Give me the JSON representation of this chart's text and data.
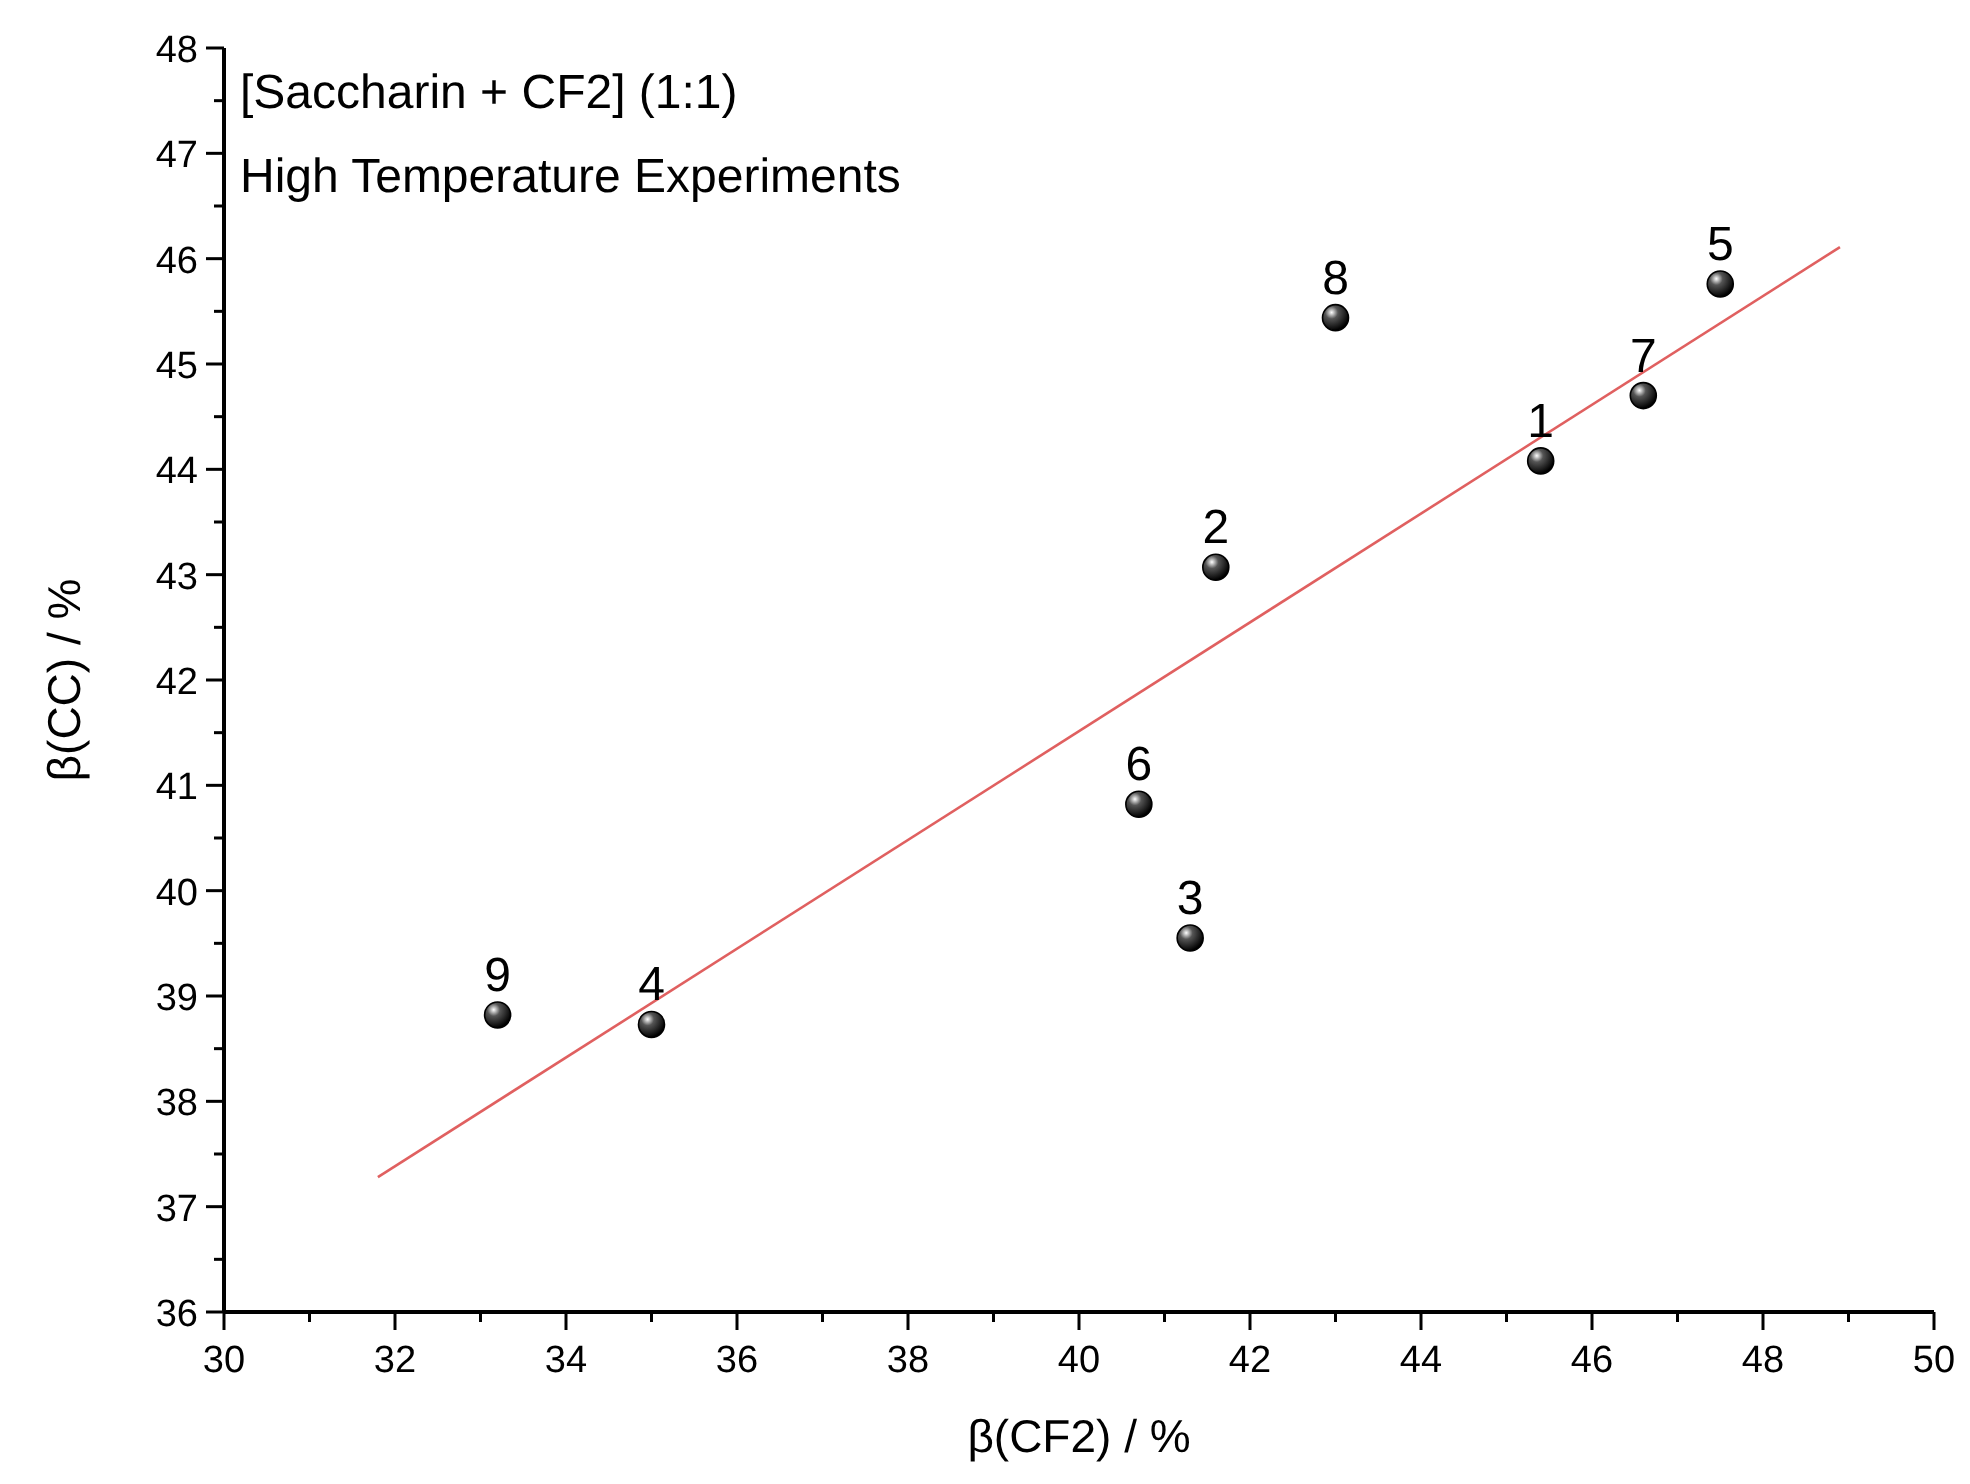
{
  "chart_data": {
    "type": "scatter",
    "title": "[Saccharin + CF2] (1:1)",
    "subtitle": "High Temperature Experiments",
    "xlabel": "β(CF2) / %",
    "ylabel": "β(CC) / %",
    "xlim": [
      30,
      50
    ],
    "ylim": [
      36,
      48
    ],
    "xticks": [
      30,
      {
        "value": 31,
        "label": null
      },
      32,
      {
        "value": 33,
        "label": null
      },
      34,
      {
        "value": 35,
        "label": null
      },
      36,
      {
        "value": 37,
        "label": null
      },
      38,
      {
        "value": 39,
        "label": null
      },
      40,
      {
        "value": 41,
        "label": null
      },
      42,
      {
        "value": 43,
        "label": null
      },
      44,
      {
        "value": 45,
        "label": null
      },
      46,
      {
        "value": 47,
        "label": null
      },
      48,
      {
        "value": 49,
        "label": null
      },
      50
    ],
    "yticks": [
      36,
      {
        "value": 36.5,
        "label": null
      },
      37,
      {
        "value": 37.5,
        "label": null
      },
      38,
      {
        "value": 38.5,
        "label": null
      },
      39,
      {
        "value": 39.5,
        "label": null
      },
      40,
      {
        "value": 40.5,
        "label": null
      },
      41,
      {
        "value": 41.5,
        "label": null
      },
      42,
      {
        "value": 42.5,
        "label": null
      },
      43,
      {
        "value": 43.5,
        "label": null
      },
      44,
      {
        "value": 44.5,
        "label": null
      },
      45,
      {
        "value": 45.5,
        "label": null
      },
      46,
      {
        "value": 46.5,
        "label": null
      },
      47,
      {
        "value": 47.5,
        "label": null
      },
      48
    ],
    "grid": false,
    "annotations": [
      {
        "text": "1",
        "x": 45.4,
        "y": 44.08
      },
      {
        "text": "2",
        "x": 41.6,
        "y": 43.07
      },
      {
        "text": "3",
        "x": 41.3,
        "y": 39.55
      },
      {
        "text": "4",
        "x": 35.0,
        "y": 38.73
      },
      {
        "text": "5",
        "x": 47.5,
        "y": 45.76
      },
      {
        "text": "6",
        "x": 40.7,
        "y": 40.82
      },
      {
        "text": "7",
        "x": 46.6,
        "y": 44.7
      },
      {
        "text": "8",
        "x": 43.0,
        "y": 45.44
      },
      {
        "text": "9",
        "x": 33.2,
        "y": 38.82
      }
    ],
    "series": [
      {
        "color": "#000000",
        "marker": "circle",
        "x": [
          45.4,
          41.6,
          41.3,
          35.0,
          47.5,
          40.7,
          46.6,
          43.0,
          33.2
        ],
        "values": [
          44.08,
          43.07,
          39.55,
          38.73,
          45.76,
          40.82,
          44.7,
          45.44,
          38.82
        ]
      },
      {
        "type": "line",
        "color": "#e06060",
        "marker": "none",
        "line_style": "solid",
        "x": [
          31.8,
          48.9
        ],
        "values": [
          37.28,
          46.11
        ]
      }
    ]
  }
}
